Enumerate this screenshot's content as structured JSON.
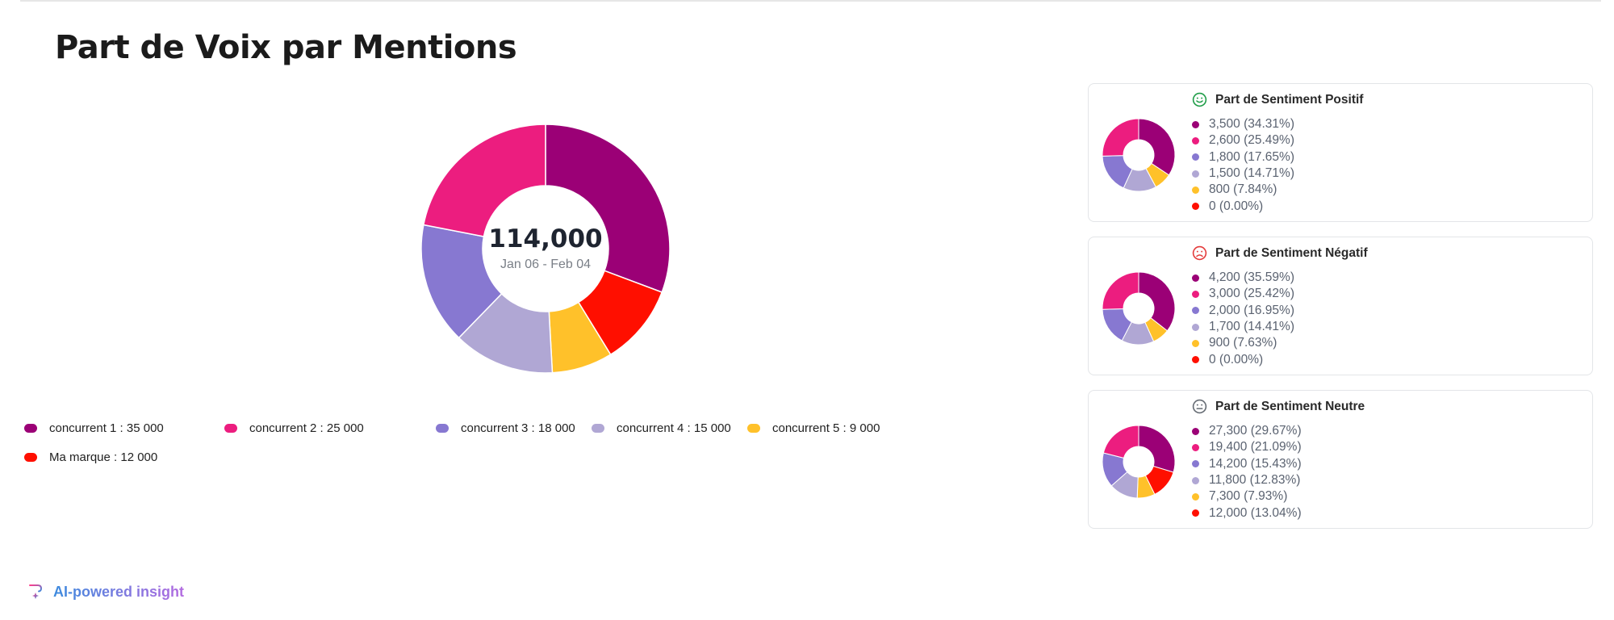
{
  "page": {
    "title": "Part de Voix par Mentions"
  },
  "colors": {
    "c1": "#9b0076",
    "c2": "#ec1d7f",
    "c3": "#8778d1",
    "c4": "#b0a7d4",
    "c5": "#ffc12a",
    "brand": "#ff0f00",
    "positive": "#1f9d48",
    "negative": "#e43b3b",
    "neutral": "#666c74"
  },
  "chart_data": [
    {
      "type": "pie",
      "title": "Part de Voix par Mentions",
      "center": {
        "total": "114,000",
        "date_range": "Jan 06 - Feb 04"
      },
      "slices": [
        {
          "label": "concurrent 1 : 35 000",
          "value": 35000,
          "color": "#9b0076"
        },
        {
          "label": "concurrent 2 : 25 000",
          "value": 25000,
          "color": "#ec1d7f"
        },
        {
          "label": "concurrent 3 : 18 000",
          "value": 18000,
          "color": "#8778d1"
        },
        {
          "label": "concurrent 4 : 15 000",
          "value": 15000,
          "color": "#b0a7d4"
        },
        {
          "label": "concurrent 5 : 9 000",
          "value": 9000,
          "color": "#ffc12a"
        },
        {
          "label": "Ma marque : 12 000",
          "value": 12000,
          "color": "#ff0f00"
        }
      ],
      "legend_position": "bottom"
    },
    {
      "type": "pie",
      "title": "Part de Sentiment Positif",
      "icon": "smile-icon",
      "values": [
        3500,
        2600,
        1800,
        1500,
        800,
        0
      ],
      "labels": [
        "3,500 (34.31%)",
        "2,600 (25.49%)",
        "1,800 (17.65%)",
        "1,500 (14.71%)",
        "800 (7.84%)",
        "0 (0.00%)"
      ]
    },
    {
      "type": "pie",
      "title": "Part de Sentiment Négatif",
      "icon": "frown-icon",
      "values": [
        4200,
        3000,
        2000,
        1700,
        900,
        0
      ],
      "labels": [
        "4,200 (35.59%)",
        "3,000 (25.42%)",
        "2,000 (16.95%)",
        "1,700 (14.41%)",
        "900 (7.63%)",
        "0 (0.00%)"
      ]
    },
    {
      "type": "pie",
      "title": "Part de Sentiment Neutre",
      "icon": "neutral-face-icon",
      "values": [
        27300,
        19400,
        14200,
        11800,
        7300,
        12000
      ],
      "labels": [
        "27,300 (29.67%)",
        "19,400 (21.09%)",
        "14,200 (15.43%)",
        "11,800 (12.83%)",
        "7,300 (7.93%)",
        "12,000 (13.04%)"
      ]
    }
  ],
  "footer": {
    "ai_label": "AI-powered insight",
    "icon": "ai-sparkle-icon"
  }
}
